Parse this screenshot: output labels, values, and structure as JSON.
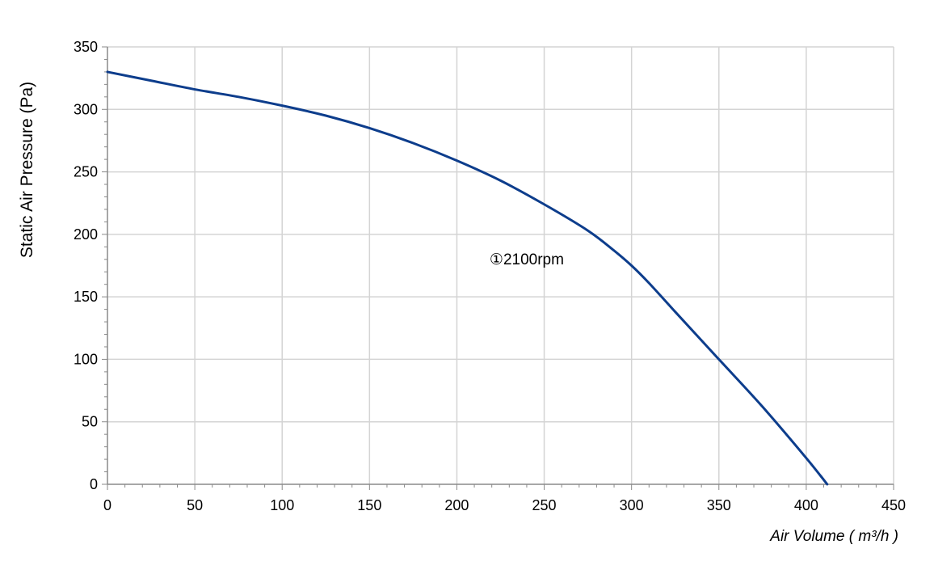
{
  "chart_data": {
    "type": "line",
    "title": "",
    "xlabel": "Air Volume ( m³/h )",
    "ylabel": "Static Air Pressure  (Pa)",
    "xlim": [
      0,
      450
    ],
    "ylim": [
      0,
      350
    ],
    "x_ticks": [
      0,
      50,
      100,
      150,
      200,
      250,
      300,
      350,
      400,
      450
    ],
    "y_ticks": [
      0,
      50,
      100,
      150,
      200,
      250,
      300,
      350
    ],
    "grid": true,
    "legend": "none",
    "series": [
      {
        "color": "#0d3d8c",
        "x": [
          0,
          25,
          50,
          75,
          100,
          125,
          150,
          175,
          200,
          225,
          250,
          275,
          290,
          300,
          310,
          325,
          350,
          375,
          400,
          412
        ],
        "y": [
          330,
          323,
          316,
          310,
          303,
          295,
          285,
          273,
          259,
          243,
          224,
          203,
          187,
          175,
          161,
          138,
          100,
          62,
          21,
          0
        ]
      }
    ],
    "annotations": [
      {
        "text": "①2100rpm",
        "x": 240,
        "y": 176
      }
    ]
  }
}
